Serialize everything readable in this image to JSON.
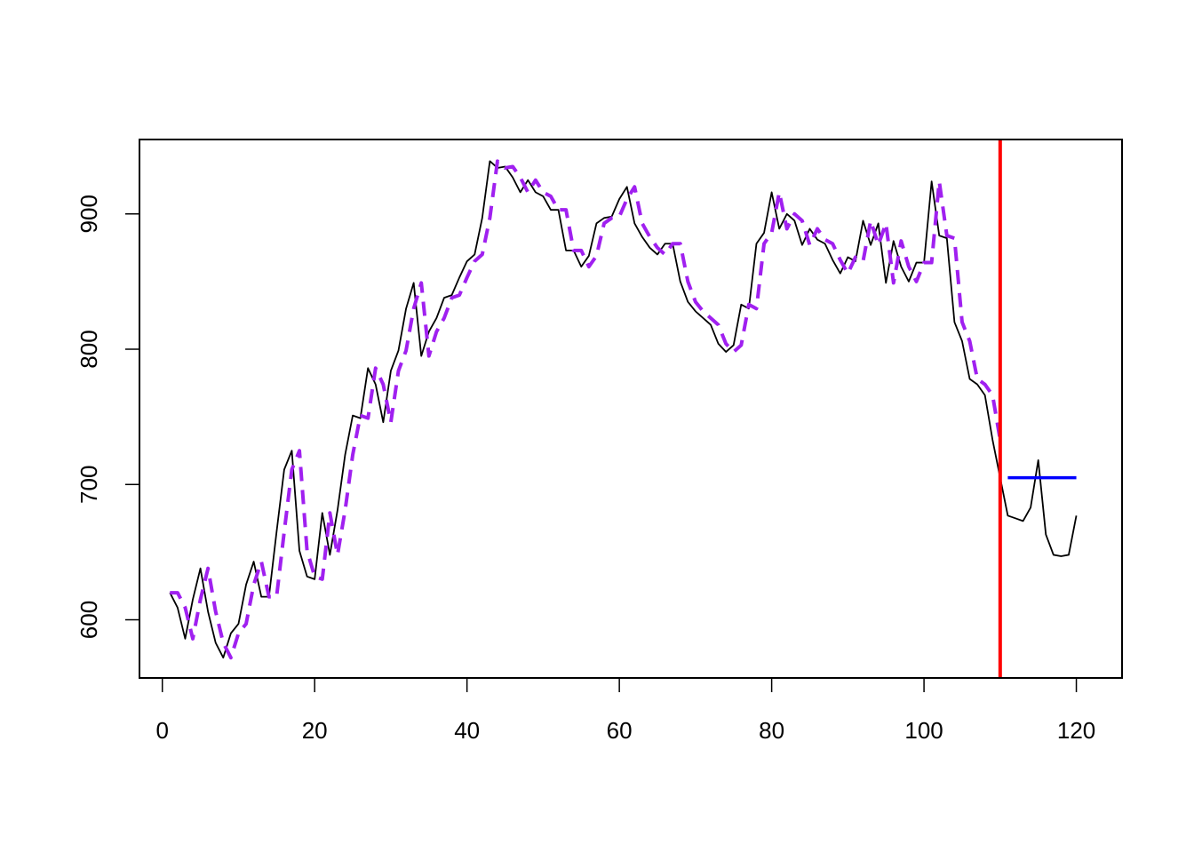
{
  "chart_data": {
    "type": "line",
    "title": "",
    "xlabel": "",
    "ylabel": "",
    "xlim": [
      -3,
      126
    ],
    "ylim": [
      557,
      955
    ],
    "x_ticks": [
      0,
      20,
      40,
      60,
      80,
      100,
      120
    ],
    "y_ticks": [
      600,
      700,
      800,
      900
    ],
    "x_tick_labels": [
      "0",
      "20",
      "40",
      "60",
      "80",
      "100",
      "120"
    ],
    "y_tick_labels": [
      "600",
      "700",
      "800",
      "900"
    ],
    "grid": false,
    "legend": "none",
    "colors": {
      "actual": "#000000",
      "fitted": "#A020F0",
      "cutoff": "#FF0000",
      "forecast": "#0000FF"
    },
    "series": [
      {
        "x_start": 1,
        "style": "solid",
        "color": "#000000",
        "values": [
          620,
          609,
          586,
          615,
          638,
          606,
          583,
          572,
          590,
          597,
          626,
          643,
          617,
          617,
          665,
          711,
          725,
          651,
          632,
          630,
          679,
          648,
          681,
          722,
          751,
          749,
          786,
          774,
          746,
          784,
          799,
          830,
          849,
          795,
          813,
          823,
          838,
          840,
          853,
          865,
          870,
          897,
          939,
          934,
          935,
          927,
          916,
          925,
          916,
          913,
          903,
          903,
          873,
          873,
          861,
          869,
          893,
          897,
          898,
          911,
          920,
          893,
          883,
          875,
          870,
          878,
          878,
          850,
          835,
          828,
          823,
          818,
          804,
          798,
          803,
          833,
          830,
          878,
          886,
          916,
          889,
          900,
          895,
          877,
          889,
          881,
          878,
          866,
          856,
          868,
          865,
          895,
          877,
          893,
          849,
          880,
          861,
          850,
          864,
          864,
          924,
          884,
          882,
          820,
          806,
          778,
          774,
          766,
          733,
          705,
          677,
          675,
          673,
          683,
          718,
          663,
          648,
          647,
          648,
          677
        ]
      },
      {
        "x_start": 1,
        "style": "dashed",
        "color": "#A020F0",
        "values": [
          620,
          620,
          609,
          586,
          615,
          638,
          606,
          583,
          572,
          590,
          597,
          626,
          643,
          617,
          617,
          665,
          711,
          725,
          651,
          632,
          630,
          679,
          648,
          681,
          722,
          751,
          749,
          786,
          774,
          746,
          784,
          799,
          830,
          849,
          795,
          813,
          823,
          838,
          840,
          853,
          865,
          870,
          897,
          939,
          934,
          935,
          927,
          916,
          925,
          916,
          913,
          903,
          903,
          873,
          873,
          861,
          869,
          893,
          897,
          898,
          911,
          920,
          893,
          883,
          875,
          870,
          878,
          878,
          850,
          835,
          828,
          823,
          818,
          804,
          798,
          803,
          833,
          830,
          878,
          886,
          916,
          889,
          900,
          895,
          877,
          889,
          881,
          878,
          866,
          856,
          868,
          865,
          895,
          877,
          893,
          849,
          880,
          861,
          850,
          864,
          864,
          924,
          884,
          882,
          820,
          806,
          778,
          774,
          766,
          733
        ]
      },
      {
        "x": [
          111,
          120
        ],
        "style": "solid",
        "color": "#0000FF",
        "values": [
          705,
          705
        ]
      }
    ],
    "vlines": [
      {
        "x": 110,
        "color": "#FF0000"
      }
    ]
  }
}
